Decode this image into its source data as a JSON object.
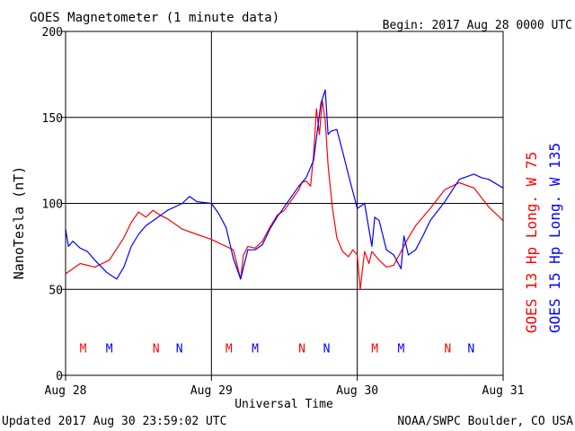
{
  "chart_data": {
    "type": "line",
    "title": "GOES Magnetometer (1 minute data)",
    "begin_label": "Begin:  2017 Aug 28 0000 UTC",
    "xlabel": "Universal Time",
    "ylabel": "NanoTesla (nT)",
    "ylim": [
      0,
      200
    ],
    "y_ticks": [
      "0",
      "50",
      "100",
      "150",
      "200"
    ],
    "xlim_days": [
      0,
      3
    ],
    "x_ticks": [
      {
        "day": 0,
        "label": "Aug 28"
      },
      {
        "day": 1,
        "label": "Aug 29"
      },
      {
        "day": 2,
        "label": "Aug 30"
      },
      {
        "day": 3,
        "label": "Aug 31"
      }
    ],
    "grid": true,
    "series": [
      {
        "name": "GOES 13 Hp  Long. W 75",
        "color": "#ff0000",
        "x_days": [
          0,
          0.05,
          0.1,
          0.2,
          0.3,
          0.4,
          0.45,
          0.5,
          0.55,
          0.6,
          0.65,
          0.7,
          0.8,
          0.9,
          1.0,
          1.1,
          1.15,
          1.2,
          1.22,
          1.25,
          1.3,
          1.35,
          1.4,
          1.45,
          1.5,
          1.55,
          1.6,
          1.62,
          1.65,
          1.68,
          1.7,
          1.72,
          1.74,
          1.76,
          1.78,
          1.8,
          1.83,
          1.86,
          1.9,
          1.94,
          1.97,
          2.0,
          2.02,
          2.05,
          2.08,
          2.1,
          2.15,
          2.2,
          2.25,
          2.3,
          2.35,
          2.4,
          2.5,
          2.6,
          2.7,
          2.8,
          2.9,
          3.0
        ],
        "values": [
          59,
          62,
          65,
          63,
          67,
          80,
          89,
          95,
          92,
          96,
          93,
          91,
          85,
          82,
          79,
          75,
          73,
          56,
          70,
          75,
          74,
          78,
          86,
          93,
          96,
          102,
          108,
          112,
          113,
          110,
          128,
          155,
          140,
          160,
          148,
          122,
          97,
          80,
          72,
          69,
          73,
          70,
          50,
          72,
          65,
          72,
          67,
          63,
          64,
          72,
          80,
          87,
          97,
          108,
          112,
          109,
          98,
          90
        ]
      },
      {
        "name": "GOES 15 Hp  Long. W 135",
        "color": "#0000ff",
        "x_days": [
          0,
          0.02,
          0.05,
          0.1,
          0.15,
          0.2,
          0.28,
          0.35,
          0.4,
          0.45,
          0.5,
          0.55,
          0.6,
          0.7,
          0.8,
          0.85,
          0.9,
          1.0,
          1.05,
          1.1,
          1.15,
          1.2,
          1.25,
          1.3,
          1.35,
          1.4,
          1.45,
          1.5,
          1.55,
          1.6,
          1.65,
          1.7,
          1.75,
          1.78,
          1.8,
          1.82,
          1.86,
          1.9,
          1.95,
          2.0,
          2.05,
          2.1,
          2.12,
          2.15,
          2.2,
          2.25,
          2.3,
          2.32,
          2.35,
          2.4,
          2.45,
          2.5,
          2.6,
          2.7,
          2.8,
          2.85,
          2.9,
          3.0
        ],
        "values": [
          85,
          75,
          78,
          74,
          72,
          67,
          60,
          56,
          63,
          75,
          82,
          87,
          90,
          96,
          100,
          104,
          101,
          100,
          94,
          86,
          68,
          56,
          73,
          73,
          76,
          85,
          92,
          98,
          104,
          110,
          115,
          125,
          158,
          166,
          140,
          142,
          143,
          130,
          113,
          97,
          100,
          75,
          92,
          90,
          73,
          70,
          62,
          81,
          70,
          73,
          81,
          90,
          101,
          114,
          117,
          115,
          114,
          109
        ]
      }
    ],
    "annotations": [
      {
        "day": 0.12,
        "text": "M",
        "color": "#ff0000"
      },
      {
        "day": 0.3,
        "text": "M",
        "color": "#0000ff"
      },
      {
        "day": 0.62,
        "text": "N",
        "color": "#ff0000"
      },
      {
        "day": 0.78,
        "text": "N",
        "color": "#0000ff"
      },
      {
        "day": 1.12,
        "text": "M",
        "color": "#ff0000"
      },
      {
        "day": 1.3,
        "text": "M",
        "color": "#0000ff"
      },
      {
        "day": 1.62,
        "text": "N",
        "color": "#ff0000"
      },
      {
        "day": 1.79,
        "text": "N",
        "color": "#0000ff"
      },
      {
        "day": 2.12,
        "text": "M",
        "color": "#ff0000"
      },
      {
        "day": 2.3,
        "text": "M",
        "color": "#0000ff"
      },
      {
        "day": 2.62,
        "text": "N",
        "color": "#ff0000"
      },
      {
        "day": 2.78,
        "text": "N",
        "color": "#0000ff"
      }
    ],
    "annotation_level": 16
  },
  "footer": {
    "updated": "Updated 2017 Aug 30 23:59:02 UTC",
    "source": "NOAA/SWPC Boulder, CO USA"
  }
}
